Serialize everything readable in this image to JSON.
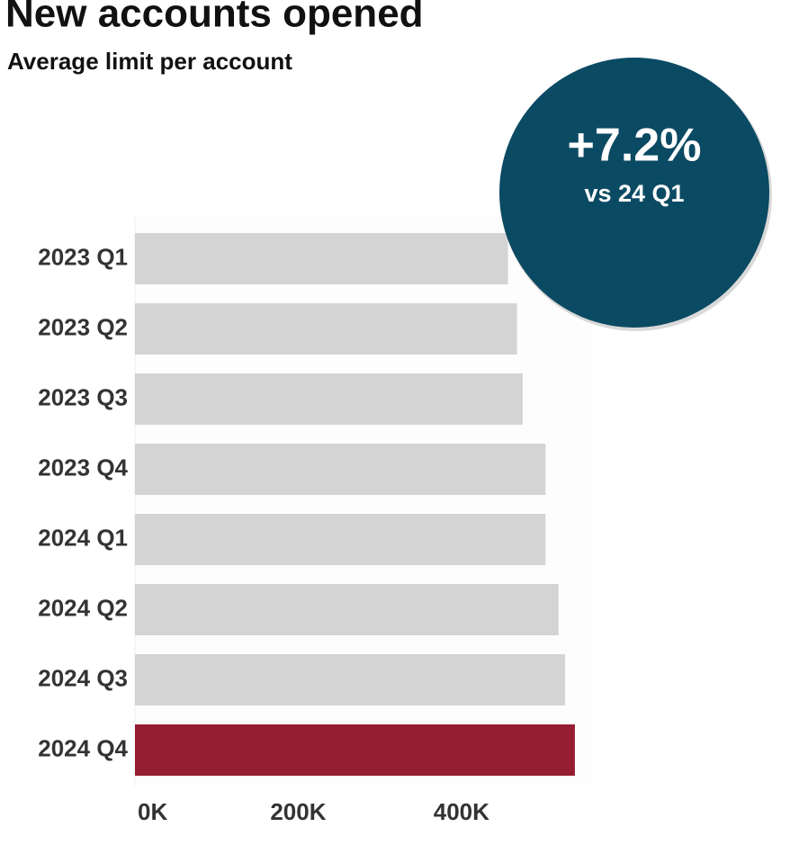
{
  "chart_data": {
    "type": "bar",
    "orientation": "horizontal",
    "title": "New accounts opened",
    "subtitle": "Average limit per account",
    "categories": [
      "2023 Q1",
      "2023 Q2",
      "2023 Q3",
      "2023 Q4",
      "2024 Q1",
      "2024 Q2",
      "2024 Q3",
      "2024 Q4"
    ],
    "values": [
      457,
      468,
      475,
      503,
      503,
      519,
      527,
      539
    ],
    "colors": [
      "#d3d4d3",
      "#d3d4d3",
      "#d3d4d3",
      "#d3d4d3",
      "#d3d4d3",
      "#d3d4d3",
      "#d3d4d3",
      "#961e33"
    ],
    "xlim": [
      0,
      560
    ],
    "xticks": [
      {
        "value": 0,
        "label": "0K"
      },
      {
        "value": 200,
        "label": "200K"
      },
      {
        "value": 400,
        "label": "400K"
      }
    ],
    "badge": {
      "text": "+7.2%",
      "subtext": "vs 24 Q1",
      "color": "#0b4a63"
    }
  }
}
